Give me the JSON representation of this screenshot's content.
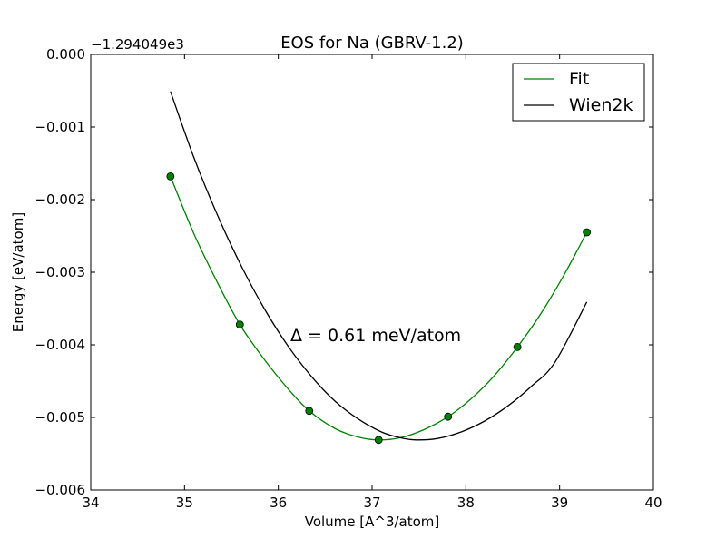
{
  "chart_data": {
    "type": "line",
    "title": "EOS for Na (GBRV-1.2)",
    "xlabel": "Volume [A^3/atom]",
    "ylabel": "Energy [eV/atom]",
    "offset_label": "−1.294049e3",
    "annotation": "Δ = 0.61 meV/atom",
    "xlim": [
      34,
      40
    ],
    "ylim": [
      -0.006,
      0.0
    ],
    "grid": false,
    "legend_position": "top-right",
    "x_ticks": [
      34,
      35,
      36,
      37,
      38,
      39,
      40
    ],
    "x_tick_labels": [
      "34",
      "35",
      "36",
      "37",
      "38",
      "39",
      "40"
    ],
    "y_ticks": [
      0.0,
      -0.001,
      -0.002,
      -0.003,
      -0.004,
      -0.005,
      -0.006
    ],
    "y_tick_labels": [
      "0.000",
      "−0.001",
      "−0.002",
      "−0.003",
      "−0.004",
      "−0.005",
      "−0.006"
    ],
    "points": {
      "color": "#007f00",
      "x": [
        34.85,
        35.59,
        36.33,
        37.07,
        37.81,
        38.55,
        39.29
      ],
      "y": [
        -0.00168,
        -0.00372,
        -0.00491,
        -0.00531,
        -0.00499,
        -0.00403,
        -0.00245
      ]
    },
    "series": [
      {
        "name": "Fit",
        "color": "#008000",
        "x": [
          34.85,
          35.1,
          35.35,
          35.59,
          35.85,
          36.1,
          36.33,
          36.6,
          36.85,
          37.07,
          37.3,
          37.55,
          37.81,
          38.05,
          38.3,
          38.55,
          38.8,
          39.05,
          39.29
        ],
        "y": [
          -0.00168,
          -0.00247,
          -0.00314,
          -0.00372,
          -0.0042,
          -0.0046,
          -0.00491,
          -0.00515,
          -0.00527,
          -0.00531,
          -0.00528,
          -0.00517,
          -0.00499,
          -0.00475,
          -0.00443,
          -0.00403,
          -0.00357,
          -0.00303,
          -0.00245
        ]
      },
      {
        "name": "Wien2k",
        "color": "#000000",
        "x": [
          34.85,
          35.1,
          35.35,
          35.6,
          35.85,
          36.1,
          36.35,
          36.6,
          36.85,
          37.1,
          37.3,
          37.47,
          37.7,
          37.95,
          38.2,
          38.45,
          38.7,
          38.95,
          39.29
        ],
        "y": [
          -0.00051,
          -0.00142,
          -0.00221,
          -0.0029,
          -0.0035,
          -0.00401,
          -0.00443,
          -0.00477,
          -0.00502,
          -0.0052,
          -0.00528,
          -0.00531,
          -0.00529,
          -0.0052,
          -0.00505,
          -0.00484,
          -0.00457,
          -0.00424,
          -0.00341
        ]
      }
    ]
  }
}
